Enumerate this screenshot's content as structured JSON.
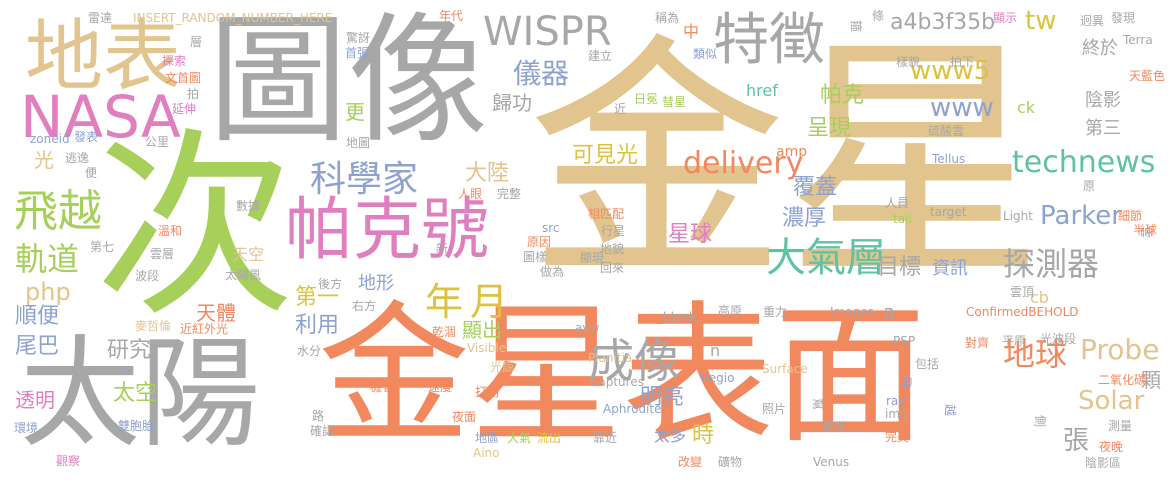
{
  "colors": {
    "tan": "#e2c48e",
    "gray": "#a7a7a7",
    "orange": "#f2885e",
    "green": "#a6d05a",
    "pink": "#e07fc0",
    "blue": "#8da2cf",
    "teal": "#5ec3a4",
    "gold": "#dcc23f"
  },
  "words": {
    "jinxing": "金星",
    "ci": "次",
    "tuxiang": "圖像",
    "jinxing_biaomian": "金星表面",
    "taiyang": "太陽",
    "dibiao": "地表",
    "tezheng": "特徵",
    "nasa": "NASA",
    "pakehao": "帕克號",
    "feiyue": "飛越",
    "wispr": "WISPR",
    "kexuejia": "科學家",
    "chengxiang": "成像",
    "daqiceng": "大氣層",
    "tanceqi": "探測器",
    "nian": "年",
    "yue": "月",
    "diqiu": "地球",
    "guidao": "軌道",
    "yiqi": "儀器",
    "technews": "technews",
    "delivery": "delivery",
    "parker": "Parker",
    "probe": "Probe",
    "solar": "Solar",
    "www5": "www5",
    "www": "www",
    "tw": "tw",
    "a4b": "a4b3f35b",
    "kejianguang": "可見光",
    "dalu": "大陸",
    "pake": "帕克",
    "chengxian": "呈現",
    "nonghou": "濃厚",
    "fugai": "覆蓋",
    "xingqiu": "星球",
    "mubiao": "目標",
    "zixun": "資訊",
    "guiguang": "歸功",
    "geng": "更",
    "guang": "光",
    "php": "php",
    "shunbian": "順便",
    "weiba": "尾巴",
    "yanjiu": "研究",
    "taikong": "太空",
    "touming": "透明",
    "tianti": "天體",
    "diyi": "第一",
    "liyong": "利用",
    "xianchu": "顯出",
    "dixing": "地形",
    "mingliang": "明亮",
    "taiduo": "太多",
    "shi": "時",
    "zhang": "張",
    "ke": "顆",
    "disan": "第三",
    "yinying": "陰影",
    "zhongyu": "終於",
    "href": "href",
    "ck": "ck",
    "amp": "amp",
    "cb": "cb",
    "a": "a",
    "n": "n",
    "zhong": "中",
    "leisi": "類似",
    "jianli": "建立",
    "niandai": "年代",
    "chengsi": "稱為",
    "tiaoleida": "條",
    "xianshi": "顯示",
    "jiongyi": "迥異",
    "faxian": "發現",
    "insert": "INSERT_RANDOM_NUMBER_HERE",
    "leida": "雷達",
    "jingya": "驚訝",
    "shouzhang": "首張",
    "ceng": "層",
    "tansuo": "探索",
    "wenshoutu": "文首圖",
    "pai": "拍",
    "yanshen": "延伸",
    "zoneid": "zoneid",
    "fabiao": "發表",
    "gongli": "公里",
    "taoyi": "逃逸",
    "bian": "便",
    "shuju": "數據",
    "wenhe": "溫和",
    "diqi": "第七",
    "yunceng": "雲層",
    "boduan": "波段",
    "tiankong": "天空",
    "taiyangfeng": "太陽風",
    "houfang": "後方",
    "youfang": "右方",
    "maizhelun": "麥哲倫",
    "jinhongwaiguang": "近紅外光",
    "shuifen": "水分",
    "huanjing": "環境",
    "shuangbaotai": "雙胞胎",
    "guancha": "觀察",
    "lu": "路",
    "queren": "確認",
    "jihui": "機會",
    "sudu": "速度",
    "dakai": "打開",
    "yemian": "夜面",
    "diqu": "地區",
    "daqi": "大氣",
    "liuchu": "流出",
    "kaojin": "靠近",
    "gaibian": "改變",
    "kuangwu": "礦物",
    "venus": "Venus",
    "daizhe": "帶來",
    "wanmei": "完美",
    "ceyue": "測量",
    "yewan": "夜晚",
    "yinyingqu": "陰影區",
    "ce": "側",
    "erynghuatan": "二氧化碳",
    "guangboduan": "光波段",
    "pingyuan": "平原",
    "duizi": "對齊",
    "baokuo": "包括",
    "fei": "飛",
    "yue2": "越",
    "bang": "幫",
    "zhaopian": "照片",
    "img": "img",
    "ray": "ray",
    "psp": "PSP",
    "confirmed": "ConfirmedBEHOLD",
    "images": "Images",
    "zhongli": "重力",
    "gaoyuan": "高原",
    "avw": "avw",
    "blank": "_blank",
    "planitia": "Planitia",
    "captures": "Captures",
    "aphrodite": "Aphrodite",
    "regio": "Regio",
    "surface": "Surface",
    "aino": "Aino",
    "visible": "Visible",
    "guanglu": "光諒",
    "ganzao": "乾涸",
    "tianlanse": "天藍色",
    "terra": "Terra",
    "xijie": "細節",
    "banqiu": "半球",
    "yun": "雲",
    "yunding": "雲頂",
    "light": "Light",
    "target": "target",
    "tail": "tail",
    "renyuan": "人員",
    "liusuansuanyun": "硫酸雲",
    "yangmao": "樣貌",
    "paixia": "拍下",
    "tellus": "Tellus",
    "yuan": "原",
    "huixing": "彗星",
    "rimian": "日冕",
    "jin": "近",
    "dituu": "地圖",
    "renyan": "人眼",
    "wanzheng": "完整",
    "src": "src",
    "yuanyin": "原因",
    "xiangpipei": "相匹配",
    "xingxing": "行星",
    "tuxiang2": "圖樣",
    "zuowei": "做為",
    "dimao": "地貌",
    "xianxian": "顯現",
    "huilai": "回來",
    "xin": "新",
    "zheng": "箍"
  }
}
